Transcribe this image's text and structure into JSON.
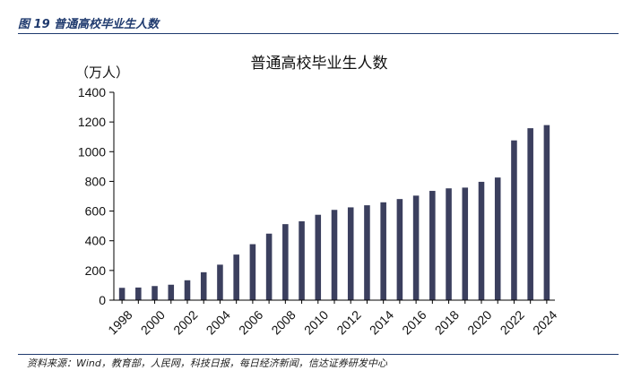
{
  "figure_caption": "图 19 普通高校毕业生人数",
  "source_note": "资料来源：Wind，教育部，人民网，科技日报，每日经济新闻，信达证券研发中心",
  "chart_data": {
    "type": "bar",
    "title": "普通高校毕业生人数",
    "ylabel": "（万人）",
    "xlabel": "",
    "ylim": [
      0,
      1400
    ],
    "yticks": [
      0,
      200,
      400,
      600,
      800,
      1000,
      1200,
      1400
    ],
    "categories": [
      "1998",
      "1999",
      "2000",
      "2001",
      "2002",
      "2003",
      "2004",
      "2005",
      "2006",
      "2007",
      "2008",
      "2009",
      "2010",
      "2011",
      "2012",
      "2013",
      "2014",
      "2015",
      "2016",
      "2017",
      "2018",
      "2019",
      "2020",
      "2021",
      "2022",
      "2023",
      "2024"
    ],
    "xtick_labels": [
      "1998",
      "2000",
      "2002",
      "2004",
      "2006",
      "2008",
      "2010",
      "2012",
      "2014",
      "2016",
      "2018",
      "2020",
      "2022",
      "2024"
    ],
    "values": [
      83,
      85,
      95,
      104,
      134,
      188,
      239,
      307,
      377,
      448,
      512,
      531,
      575,
      608,
      625,
      639,
      659,
      681,
      704,
      736,
      753,
      758,
      797,
      826,
      1076,
      1158,
      1179
    ],
    "bar_color": "#3b3f5e",
    "grid": false,
    "legend": "none"
  }
}
